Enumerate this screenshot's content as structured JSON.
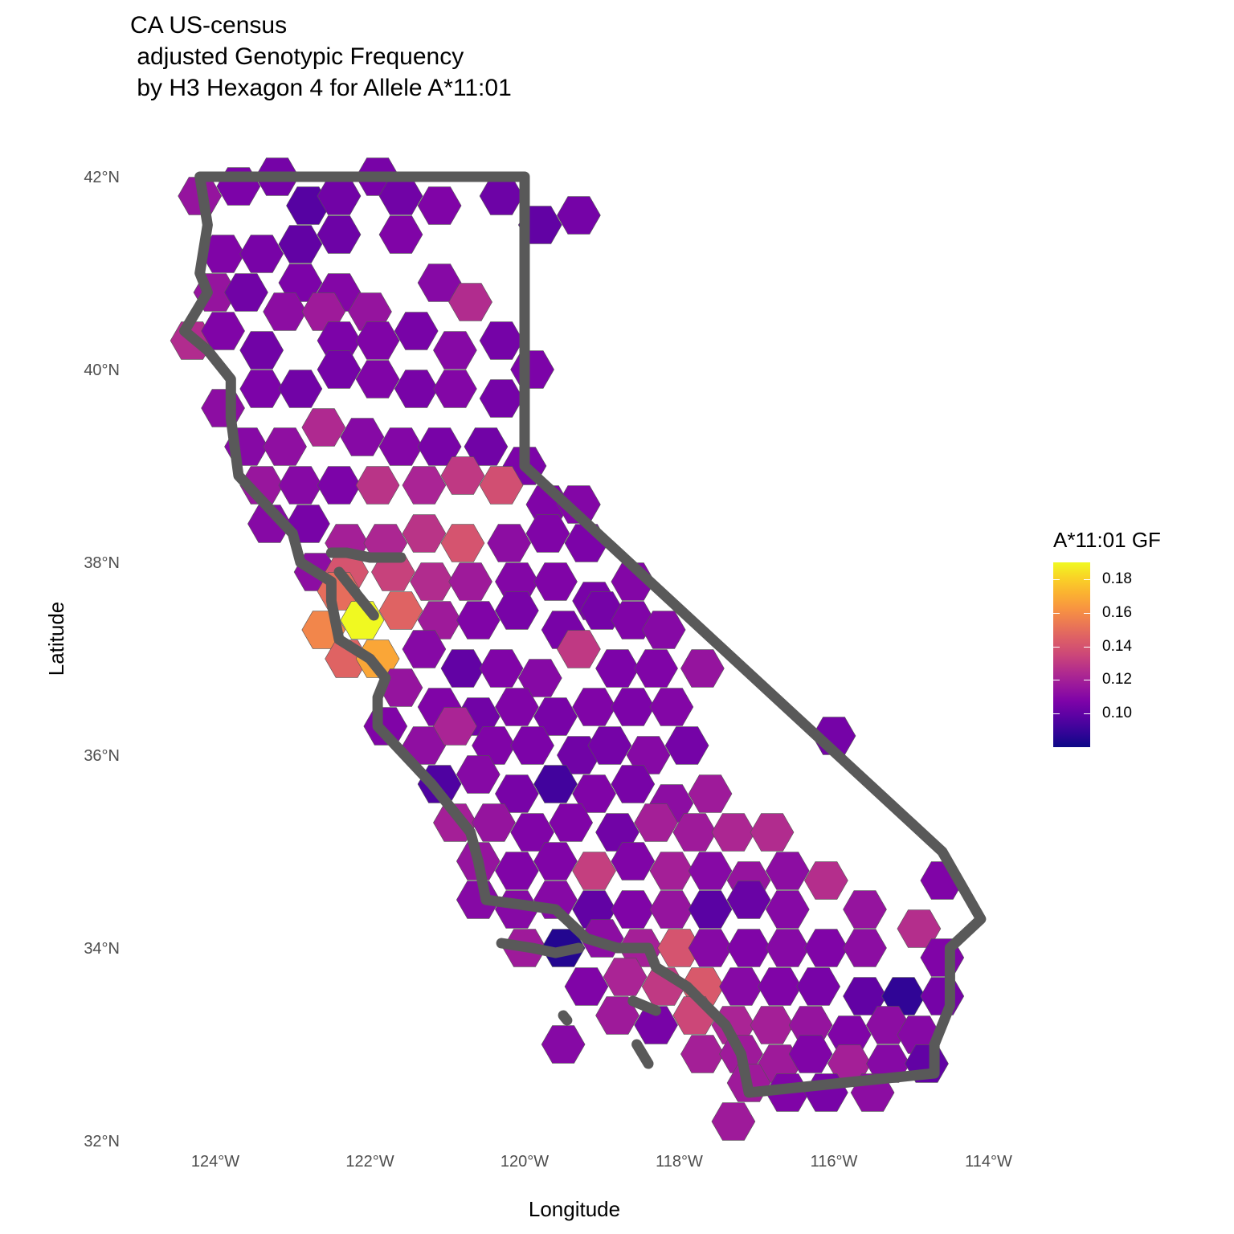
{
  "title": {
    "line1": "CA US-census",
    "line2": " adjusted Genotypic Frequency",
    "line3": " by H3 Hexagon 4 for Allele A*11:01"
  },
  "axes": {
    "x_title": "Longitude",
    "y_title": "Latitude",
    "x_ticks": [
      "124°W",
      "122°W",
      "120°W",
      "118°W",
      "116°W",
      "114°W"
    ],
    "y_ticks": [
      "42°N",
      "40°N",
      "38°N",
      "36°N",
      "34°N",
      "32°N"
    ]
  },
  "legend": {
    "title": "A*11:01 GF",
    "labels": [
      "0.18",
      "0.16",
      "0.14",
      "0.12",
      "0.10"
    ],
    "range": [
      0.08,
      0.19
    ]
  },
  "colors": {
    "outline": "#595959",
    "palette": "plasma"
  },
  "chart_data": {
    "type": "heatmap",
    "title": "CA US-census adjusted Genotypic Frequency by H3 Hexagon 4 for Allele A*11:01",
    "xlabel": "Longitude",
    "ylabel": "Latitude",
    "xlim": [
      -125,
      -113.5
    ],
    "ylim": [
      32,
      42.5
    ],
    "value_range": [
      0.08,
      0.19
    ],
    "grid": false,
    "legend_position": "right",
    "cells": [
      [
        -124.2,
        41.8,
        0.115
      ],
      [
        -123.7,
        41.9,
        0.107
      ],
      [
        -123.2,
        42.0,
        0.105
      ],
      [
        -122.8,
        41.7,
        0.097
      ],
      [
        -122.4,
        41.8,
        0.104
      ],
      [
        -121.9,
        42.0,
        0.106
      ],
      [
        -121.6,
        41.8,
        0.104
      ],
      [
        -121.1,
        41.7,
        0.108
      ],
      [
        -120.3,
        41.8,
        0.103
      ],
      [
        -119.8,
        41.5,
        0.1
      ],
      [
        -119.3,
        41.6,
        0.105
      ],
      [
        -122.9,
        41.3,
        0.1
      ],
      [
        -122.4,
        41.4,
        0.103
      ],
      [
        -121.6,
        41.4,
        0.108
      ],
      [
        -123.9,
        41.2,
        0.108
      ],
      [
        -123.4,
        41.2,
        0.106
      ],
      [
        -122.9,
        40.9,
        0.107
      ],
      [
        -122.4,
        40.8,
        0.109
      ],
      [
        -121.1,
        40.9,
        0.11
      ],
      [
        -124.0,
        40.8,
        0.115
      ],
      [
        -123.6,
        40.8,
        0.104
      ],
      [
        -123.1,
        40.6,
        0.112
      ],
      [
        -122.6,
        40.6,
        0.118
      ],
      [
        -122.0,
        40.6,
        0.115
      ],
      [
        -120.7,
        40.7,
        0.125
      ],
      [
        -124.3,
        40.3,
        0.125
      ],
      [
        -123.9,
        40.4,
        0.108
      ],
      [
        -123.4,
        40.2,
        0.104
      ],
      [
        -122.4,
        40.3,
        0.107
      ],
      [
        -121.9,
        40.3,
        0.108
      ],
      [
        -121.4,
        40.4,
        0.106
      ],
      [
        -120.9,
        40.2,
        0.11
      ],
      [
        -120.3,
        40.3,
        0.105
      ],
      [
        -119.9,
        40.0,
        0.107
      ],
      [
        -123.9,
        39.6,
        0.112
      ],
      [
        -123.4,
        39.8,
        0.107
      ],
      [
        -122.9,
        39.8,
        0.104
      ],
      [
        -122.4,
        40.0,
        0.105
      ],
      [
        -121.9,
        39.9,
        0.108
      ],
      [
        -121.4,
        39.8,
        0.106
      ],
      [
        -120.9,
        39.8,
        0.109
      ],
      [
        -120.3,
        39.7,
        0.105
      ],
      [
        -123.6,
        39.2,
        0.11
      ],
      [
        -123.1,
        39.2,
        0.113
      ],
      [
        -122.6,
        39.4,
        0.124
      ],
      [
        -122.1,
        39.3,
        0.11
      ],
      [
        -121.6,
        39.2,
        0.109
      ],
      [
        -121.1,
        39.2,
        0.106
      ],
      [
        -120.5,
        39.2,
        0.104
      ],
      [
        -120.0,
        39.0,
        0.107
      ],
      [
        -123.4,
        38.8,
        0.116
      ],
      [
        -122.9,
        38.8,
        0.11
      ],
      [
        -122.4,
        38.8,
        0.107
      ],
      [
        -121.9,
        38.8,
        0.128
      ],
      [
        -121.3,
        38.8,
        0.122
      ],
      [
        -120.8,
        38.9,
        0.13
      ],
      [
        -120.3,
        38.8,
        0.138
      ],
      [
        -119.7,
        38.6,
        0.108
      ],
      [
        -119.3,
        38.6,
        0.109
      ],
      [
        -123.3,
        38.4,
        0.11
      ],
      [
        -122.8,
        38.4,
        0.106
      ],
      [
        -122.3,
        38.2,
        0.12
      ],
      [
        -121.8,
        38.2,
        0.123
      ],
      [
        -121.3,
        38.3,
        0.128
      ],
      [
        -120.8,
        38.2,
        0.14
      ],
      [
        -120.2,
        38.2,
        0.112
      ],
      [
        -119.7,
        38.3,
        0.108
      ],
      [
        -119.2,
        38.2,
        0.107
      ],
      [
        -122.7,
        37.9,
        0.112
      ],
      [
        -122.3,
        37.9,
        0.14
      ],
      [
        -121.7,
        37.9,
        0.133
      ],
      [
        -121.2,
        37.8,
        0.125
      ],
      [
        -120.7,
        37.8,
        0.118
      ],
      [
        -120.1,
        37.8,
        0.109
      ],
      [
        -119.6,
        37.8,
        0.108
      ],
      [
        -119.1,
        37.6,
        0.106
      ],
      [
        -118.6,
        37.8,
        0.109
      ],
      [
        -122.4,
        37.7,
        0.15
      ],
      [
        -122.1,
        37.4,
        0.19
      ],
      [
        -121.6,
        37.5,
        0.146
      ],
      [
        -121.1,
        37.4,
        0.118
      ],
      [
        -120.6,
        37.4,
        0.108
      ],
      [
        -120.1,
        37.5,
        0.106
      ],
      [
        -119.5,
        37.3,
        0.106
      ],
      [
        -119.0,
        37.5,
        0.105
      ],
      [
        -118.6,
        37.4,
        0.108
      ],
      [
        -118.2,
        37.3,
        0.11
      ],
      [
        -122.6,
        37.3,
        0.158
      ],
      [
        -122.3,
        37.0,
        0.146
      ],
      [
        -121.9,
        37.0,
        0.168
      ],
      [
        -121.3,
        37.1,
        0.11
      ],
      [
        -120.8,
        36.9,
        0.1
      ],
      [
        -120.3,
        36.9,
        0.108
      ],
      [
        -119.8,
        36.8,
        0.11
      ],
      [
        -119.3,
        37.1,
        0.13
      ],
      [
        -118.8,
        36.9,
        0.107
      ],
      [
        -118.3,
        36.9,
        0.108
      ],
      [
        -117.7,
        36.9,
        0.115
      ],
      [
        -121.6,
        36.7,
        0.115
      ],
      [
        -121.1,
        36.5,
        0.108
      ],
      [
        -120.6,
        36.4,
        0.104
      ],
      [
        -120.1,
        36.5,
        0.108
      ],
      [
        -119.6,
        36.4,
        0.106
      ],
      [
        -119.1,
        36.5,
        0.108
      ],
      [
        -118.6,
        36.5,
        0.107
      ],
      [
        -118.1,
        36.5,
        0.109
      ],
      [
        -116.0,
        36.2,
        0.105
      ],
      [
        -121.8,
        36.3,
        0.108
      ],
      [
        -121.3,
        36.1,
        0.113
      ],
      [
        -120.9,
        36.3,
        0.122
      ],
      [
        -120.4,
        36.1,
        0.108
      ],
      [
        -119.9,
        36.1,
        0.107
      ],
      [
        -119.3,
        36.0,
        0.104
      ],
      [
        -118.9,
        36.1,
        0.105
      ],
      [
        -118.4,
        36.0,
        0.11
      ],
      [
        -117.9,
        36.1,
        0.105
      ],
      [
        -121.1,
        35.7,
        0.095
      ],
      [
        -120.6,
        35.8,
        0.11
      ],
      [
        -120.1,
        35.6,
        0.106
      ],
      [
        -119.6,
        35.7,
        0.092
      ],
      [
        -119.1,
        35.6,
        0.108
      ],
      [
        -118.6,
        35.7,
        0.106
      ],
      [
        -118.1,
        35.5,
        0.112
      ],
      [
        -117.6,
        35.6,
        0.118
      ],
      [
        -120.9,
        35.3,
        0.12
      ],
      [
        -120.4,
        35.3,
        0.115
      ],
      [
        -119.9,
        35.2,
        0.108
      ],
      [
        -119.4,
        35.3,
        0.108
      ],
      [
        -118.8,
        35.2,
        0.104
      ],
      [
        -118.3,
        35.3,
        0.12
      ],
      [
        -117.8,
        35.2,
        0.118
      ],
      [
        -117.3,
        35.2,
        0.123
      ],
      [
        -116.8,
        35.2,
        0.125
      ],
      [
        -120.6,
        34.9,
        0.115
      ],
      [
        -120.1,
        34.8,
        0.108
      ],
      [
        -119.6,
        34.9,
        0.108
      ],
      [
        -119.1,
        34.8,
        0.132
      ],
      [
        -118.6,
        34.9,
        0.108
      ],
      [
        -118.1,
        34.8,
        0.12
      ],
      [
        -117.6,
        34.8,
        0.11
      ],
      [
        -117.1,
        34.7,
        0.115
      ],
      [
        -116.6,
        34.8,
        0.112
      ],
      [
        -116.1,
        34.7,
        0.126
      ],
      [
        -114.6,
        34.7,
        0.108
      ],
      [
        -120.6,
        34.5,
        0.11
      ],
      [
        -120.1,
        34.4,
        0.11
      ],
      [
        -119.6,
        34.5,
        0.11
      ],
      [
        -119.1,
        34.4,
        0.1
      ],
      [
        -118.6,
        34.4,
        0.108
      ],
      [
        -118.1,
        34.4,
        0.115
      ],
      [
        -117.6,
        34.4,
        0.098
      ],
      [
        -117.1,
        34.5,
        0.102
      ],
      [
        -116.6,
        34.4,
        0.11
      ],
      [
        -115.6,
        34.4,
        0.115
      ],
      [
        -114.9,
        34.2,
        0.126
      ],
      [
        -120.0,
        34.0,
        0.118
      ],
      [
        -119.5,
        34.0,
        0.085
      ],
      [
        -119.0,
        34.1,
        0.112
      ],
      [
        -118.5,
        34.0,
        0.12
      ],
      [
        -118.0,
        34.0,
        0.14
      ],
      [
        -117.6,
        34.0,
        0.11
      ],
      [
        -117.1,
        34.0,
        0.108
      ],
      [
        -116.6,
        34.0,
        0.11
      ],
      [
        -116.1,
        34.0,
        0.108
      ],
      [
        -115.6,
        34.0,
        0.112
      ],
      [
        -114.6,
        33.9,
        0.108
      ],
      [
        -119.2,
        33.6,
        0.108
      ],
      [
        -118.7,
        33.7,
        0.122
      ],
      [
        -118.2,
        33.6,
        0.13
      ],
      [
        -117.7,
        33.6,
        0.142
      ],
      [
        -117.2,
        33.6,
        0.11
      ],
      [
        -116.7,
        33.6,
        0.108
      ],
      [
        -116.2,
        33.6,
        0.106
      ],
      [
        -115.6,
        33.5,
        0.1
      ],
      [
        -115.1,
        33.5,
        0.088
      ],
      [
        -114.6,
        33.5,
        0.105
      ],
      [
        -118.8,
        33.3,
        0.118
      ],
      [
        -118.3,
        33.2,
        0.106
      ],
      [
        -117.8,
        33.3,
        0.135
      ],
      [
        -117.3,
        33.2,
        0.122
      ],
      [
        -116.8,
        33.2,
        0.12
      ],
      [
        -116.3,
        33.2,
        0.115
      ],
      [
        -115.8,
        33.1,
        0.108
      ],
      [
        -115.3,
        33.2,
        0.112
      ],
      [
        -114.9,
        33.1,
        0.11
      ],
      [
        -119.5,
        33.0,
        0.11
      ],
      [
        -117.7,
        32.9,
        0.12
      ],
      [
        -117.2,
        32.9,
        0.118
      ],
      [
        -116.7,
        32.8,
        0.118
      ],
      [
        -116.3,
        32.9,
        0.108
      ],
      [
        -115.8,
        32.8,
        0.12
      ],
      [
        -115.3,
        32.8,
        0.11
      ],
      [
        -114.8,
        32.8,
        0.1
      ],
      [
        -117.1,
        32.6,
        0.118
      ],
      [
        -116.6,
        32.5,
        0.108
      ],
      [
        -116.1,
        32.5,
        0.106
      ],
      [
        -115.5,
        32.5,
        0.112
      ],
      [
        -117.3,
        32.2,
        0.118
      ]
    ]
  }
}
